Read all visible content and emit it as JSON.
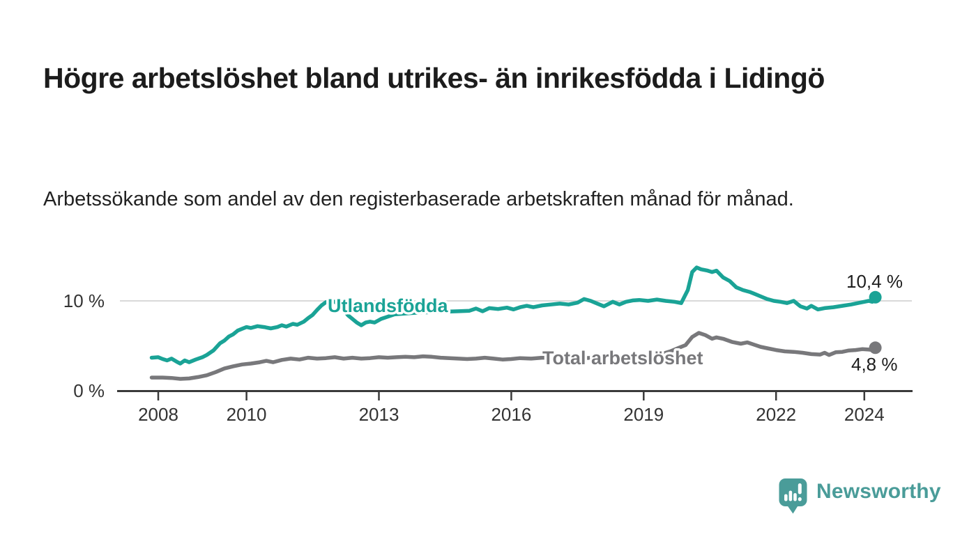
{
  "header": {
    "title": "Högre arbetslöshet bland utrikes- än inrikesfödda i Lidingö",
    "subtitle": "Arbetssökande som andel av den registerbaserade arbetskraften månad för månad."
  },
  "branding": {
    "logo_text": "Newsworthy",
    "logo_color": "#4a9c99",
    "logo_icon": "speech-bubble-bar-chart-icon"
  },
  "chart_data": {
    "type": "line",
    "title": "Högre arbetslöshet bland utrikes- än inrikesfödda i Lidingö",
    "subtitle": "Arbetssökande som andel av den registerbaserade arbetskraften månad för månad.",
    "xlabel": "",
    "ylabel": "",
    "x_ticks": [
      2008,
      2010,
      2013,
      2016,
      2019,
      2022,
      2024
    ],
    "y_ticks": [
      {
        "value": 10,
        "label": "10 %"
      },
      {
        "value": 0,
        "label": "0 %"
      }
    ],
    "xlim": [
      2007.8,
      2025.2
    ],
    "ylim": [
      0,
      14.5
    ],
    "grid": "single horizontal gridline at 10 %",
    "legend_position": "inline labels on lines",
    "axis_color": "#3a3a3a",
    "gridline_color": "#d9d9d9",
    "series": [
      {
        "name": "Utlandsfödda",
        "color": "#1aa396",
        "end_label": "10,4 %",
        "end_value": 10.4,
        "points": [
          [
            2007.85,
            3.7
          ],
          [
            2008.0,
            3.75
          ],
          [
            2008.1,
            3.55
          ],
          [
            2008.2,
            3.4
          ],
          [
            2008.3,
            3.6
          ],
          [
            2008.42,
            3.25
          ],
          [
            2008.5,
            3.05
          ],
          [
            2008.6,
            3.4
          ],
          [
            2008.7,
            3.2
          ],
          [
            2008.85,
            3.5
          ],
          [
            2009.0,
            3.75
          ],
          [
            2009.1,
            4.0
          ],
          [
            2009.25,
            4.5
          ],
          [
            2009.4,
            5.3
          ],
          [
            2009.5,
            5.6
          ],
          [
            2009.6,
            6.05
          ],
          [
            2009.7,
            6.3
          ],
          [
            2009.8,
            6.7
          ],
          [
            2009.9,
            6.9
          ],
          [
            2010.0,
            7.1
          ],
          [
            2010.1,
            7.0
          ],
          [
            2010.25,
            7.2
          ],
          [
            2010.4,
            7.1
          ],
          [
            2010.55,
            6.95
          ],
          [
            2010.7,
            7.1
          ],
          [
            2010.8,
            7.3
          ],
          [
            2010.9,
            7.15
          ],
          [
            2011.05,
            7.45
          ],
          [
            2011.15,
            7.35
          ],
          [
            2011.3,
            7.7
          ],
          [
            2011.4,
            8.1
          ],
          [
            2011.5,
            8.45
          ],
          [
            2011.6,
            9.0
          ],
          [
            2011.7,
            9.5
          ],
          [
            2011.8,
            9.85
          ],
          [
            2011.9,
            10.0
          ],
          [
            2012.0,
            9.9
          ],
          [
            2012.1,
            9.5
          ],
          [
            2012.2,
            9.0
          ],
          [
            2012.3,
            8.4
          ],
          [
            2012.4,
            8.0
          ],
          [
            2012.5,
            7.6
          ],
          [
            2012.6,
            7.3
          ],
          [
            2012.7,
            7.6
          ],
          [
            2012.8,
            7.7
          ],
          [
            2012.9,
            7.6
          ],
          [
            2013.05,
            8.0
          ],
          [
            2013.2,
            8.25
          ],
          [
            2013.35,
            8.5
          ],
          [
            2013.6,
            8.6
          ],
          [
            2013.9,
            8.7
          ],
          [
            2014.2,
            8.75
          ],
          [
            2014.5,
            8.8
          ],
          [
            2014.8,
            8.85
          ],
          [
            2015.05,
            8.9
          ],
          [
            2015.2,
            9.15
          ],
          [
            2015.35,
            8.85
          ],
          [
            2015.5,
            9.2
          ],
          [
            2015.7,
            9.1
          ],
          [
            2015.9,
            9.25
          ],
          [
            2016.05,
            9.05
          ],
          [
            2016.2,
            9.3
          ],
          [
            2016.35,
            9.45
          ],
          [
            2016.5,
            9.3
          ],
          [
            2016.7,
            9.5
          ],
          [
            2016.9,
            9.6
          ],
          [
            2017.1,
            9.7
          ],
          [
            2017.3,
            9.6
          ],
          [
            2017.5,
            9.8
          ],
          [
            2017.65,
            10.2
          ],
          [
            2017.8,
            10.0
          ],
          [
            2017.95,
            9.7
          ],
          [
            2018.1,
            9.4
          ],
          [
            2018.3,
            9.9
          ],
          [
            2018.45,
            9.6
          ],
          [
            2018.6,
            9.9
          ],
          [
            2018.75,
            10.05
          ],
          [
            2018.9,
            10.1
          ],
          [
            2019.1,
            10.0
          ],
          [
            2019.3,
            10.15
          ],
          [
            2019.5,
            10.0
          ],
          [
            2019.7,
            9.9
          ],
          [
            2019.85,
            9.75
          ],
          [
            2020.0,
            11.2
          ],
          [
            2020.1,
            13.2
          ],
          [
            2020.2,
            13.7
          ],
          [
            2020.3,
            13.5
          ],
          [
            2020.45,
            13.35
          ],
          [
            2020.55,
            13.2
          ],
          [
            2020.65,
            13.35
          ],
          [
            2020.8,
            12.6
          ],
          [
            2020.95,
            12.2
          ],
          [
            2021.1,
            11.5
          ],
          [
            2021.25,
            11.2
          ],
          [
            2021.4,
            11.0
          ],
          [
            2021.5,
            10.8
          ],
          [
            2021.65,
            10.5
          ],
          [
            2021.8,
            10.2
          ],
          [
            2021.95,
            10.0
          ],
          [
            2022.1,
            9.9
          ],
          [
            2022.25,
            9.75
          ],
          [
            2022.4,
            10.0
          ],
          [
            2022.55,
            9.4
          ],
          [
            2022.7,
            9.15
          ],
          [
            2022.8,
            9.45
          ],
          [
            2022.95,
            9.05
          ],
          [
            2023.1,
            9.2
          ],
          [
            2023.3,
            9.3
          ],
          [
            2023.5,
            9.45
          ],
          [
            2023.7,
            9.6
          ],
          [
            2023.9,
            9.8
          ],
          [
            2024.0,
            9.9
          ],
          [
            2024.1,
            10.0
          ],
          [
            2024.18,
            9.9
          ],
          [
            2024.25,
            10.4
          ]
        ]
      },
      {
        "name": "Total arbetslöshet",
        "color": "#78787b",
        "end_label": "4,8 %",
        "end_value": 4.8,
        "points": [
          [
            2007.85,
            1.5
          ],
          [
            2008.1,
            1.5
          ],
          [
            2008.3,
            1.45
          ],
          [
            2008.5,
            1.35
          ],
          [
            2008.7,
            1.4
          ],
          [
            2008.9,
            1.55
          ],
          [
            2009.1,
            1.75
          ],
          [
            2009.3,
            2.1
          ],
          [
            2009.5,
            2.5
          ],
          [
            2009.7,
            2.75
          ],
          [
            2009.9,
            2.95
          ],
          [
            2010.1,
            3.05
          ],
          [
            2010.3,
            3.2
          ],
          [
            2010.45,
            3.35
          ],
          [
            2010.6,
            3.2
          ],
          [
            2010.8,
            3.45
          ],
          [
            2011.0,
            3.6
          ],
          [
            2011.2,
            3.5
          ],
          [
            2011.4,
            3.7
          ],
          [
            2011.6,
            3.6
          ],
          [
            2011.8,
            3.65
          ],
          [
            2012.0,
            3.75
          ],
          [
            2012.2,
            3.6
          ],
          [
            2012.4,
            3.7
          ],
          [
            2012.6,
            3.6
          ],
          [
            2012.8,
            3.65
          ],
          [
            2013.0,
            3.75
          ],
          [
            2013.2,
            3.7
          ],
          [
            2013.4,
            3.75
          ],
          [
            2013.6,
            3.8
          ],
          [
            2013.8,
            3.75
          ],
          [
            2014.0,
            3.85
          ],
          [
            2014.2,
            3.8
          ],
          [
            2014.4,
            3.7
          ],
          [
            2014.6,
            3.65
          ],
          [
            2014.8,
            3.6
          ],
          [
            2015.0,
            3.55
          ],
          [
            2015.2,
            3.6
          ],
          [
            2015.4,
            3.7
          ],
          [
            2015.6,
            3.6
          ],
          [
            2015.8,
            3.5
          ],
          [
            2016.0,
            3.55
          ],
          [
            2016.2,
            3.65
          ],
          [
            2016.45,
            3.6
          ],
          [
            2016.7,
            3.7
          ],
          [
            2017.0,
            3.7
          ],
          [
            2017.3,
            3.65
          ],
          [
            2017.6,
            3.65
          ],
          [
            2017.9,
            3.7
          ],
          [
            2018.2,
            3.8
          ],
          [
            2018.5,
            3.8
          ],
          [
            2018.8,
            3.9
          ],
          [
            2019.1,
            3.95
          ],
          [
            2019.4,
            4.1
          ],
          [
            2019.6,
            4.4
          ],
          [
            2019.8,
            4.8
          ],
          [
            2019.95,
            5.1
          ],
          [
            2020.1,
            6.0
          ],
          [
            2020.25,
            6.45
          ],
          [
            2020.4,
            6.2
          ],
          [
            2020.55,
            5.8
          ],
          [
            2020.65,
            5.95
          ],
          [
            2020.8,
            5.8
          ],
          [
            2021.0,
            5.45
          ],
          [
            2021.2,
            5.25
          ],
          [
            2021.35,
            5.4
          ],
          [
            2021.5,
            5.15
          ],
          [
            2021.65,
            4.9
          ],
          [
            2021.8,
            4.75
          ],
          [
            2022.0,
            4.55
          ],
          [
            2022.2,
            4.4
          ],
          [
            2022.4,
            4.35
          ],
          [
            2022.6,
            4.25
          ],
          [
            2022.8,
            4.1
          ],
          [
            2023.0,
            4.05
          ],
          [
            2023.1,
            4.25
          ],
          [
            2023.2,
            4.0
          ],
          [
            2023.35,
            4.3
          ],
          [
            2023.5,
            4.35
          ],
          [
            2023.65,
            4.5
          ],
          [
            2023.8,
            4.55
          ],
          [
            2023.95,
            4.65
          ],
          [
            2024.1,
            4.6
          ],
          [
            2024.2,
            4.55
          ],
          [
            2024.25,
            4.8
          ]
        ]
      }
    ]
  }
}
